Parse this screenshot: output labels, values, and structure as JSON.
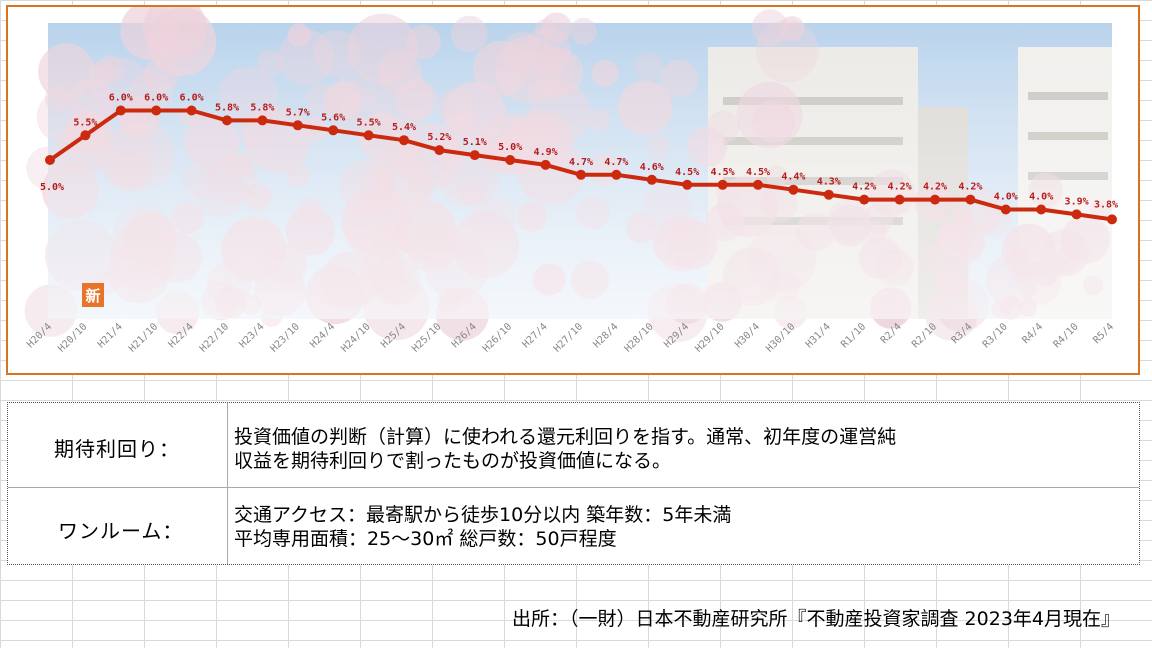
{
  "chart_data": {
    "type": "line",
    "x": [
      "H20/4",
      "H20/10",
      "H21/4",
      "H21/10",
      "H22/4",
      "H22/10",
      "H23/4",
      "H23/10",
      "H24/4",
      "H24/10",
      "H25/4",
      "H25/10",
      "H26/4",
      "H26/10",
      "H27/4",
      "H27/10",
      "H28/4",
      "H28/10",
      "H29/4",
      "H29/10",
      "H30/4",
      "H30/10",
      "H31/4",
      "R1/10",
      "R2/4",
      "R2/10",
      "R3/4",
      "R3/10",
      "R4/4",
      "R4/10",
      "R5/4"
    ],
    "values": [
      5.0,
      5.5,
      6.0,
      6.0,
      6.0,
      5.8,
      5.8,
      5.7,
      5.6,
      5.5,
      5.4,
      5.2,
      5.1,
      5.0,
      4.9,
      4.7,
      4.7,
      4.6,
      4.5,
      4.5,
      4.5,
      4.4,
      4.3,
      4.2,
      4.2,
      4.2,
      4.2,
      4.0,
      4.0,
      3.9,
      3.8
    ],
    "labels": [
      "5.0%",
      "5.5%",
      "6.0%",
      "6.0%",
      "6.0%",
      "5.8%",
      "5.8%",
      "5.7%",
      "5.6%",
      "5.5%",
      "5.4%",
      "5.2%",
      "5.1%",
      "5.0%",
      "4.9%",
      "4.7%",
      "4.7%",
      "4.6%",
      "4.5%",
      "4.5%",
      "4.5%",
      "4.4%",
      "4.3%",
      "4.2%",
      "4.2%",
      "4.2%",
      "4.2%",
      "4.0%",
      "4.0%",
      "3.9%",
      "3.8%"
    ],
    "line_color": "#cc2a0e",
    "label_color": "#b71c1c",
    "badge": "新",
    "badge_color": "#e8742a"
  },
  "table": {
    "rows": [
      {
        "term": "期待利回り：",
        "lines": [
          "投資価値の判断（計算）に使われる還元利回りを指す。通常、初年度の運営純",
          "収益を期待利回りで割ったものが投資価値になる。"
        ]
      },
      {
        "term": "ワンルーム：",
        "lines": [
          "交通アクセス：最寄駅から徒歩10分以内 築年数：5年未満",
          "平均専用面積：25～30㎡ 総戸数：50戸程度"
        ]
      }
    ]
  },
  "source": "出所：（一財）日本不動産研究所『不動産投資家調査 2023年4月現在』",
  "colors": {
    "frame": "#d9731f"
  }
}
